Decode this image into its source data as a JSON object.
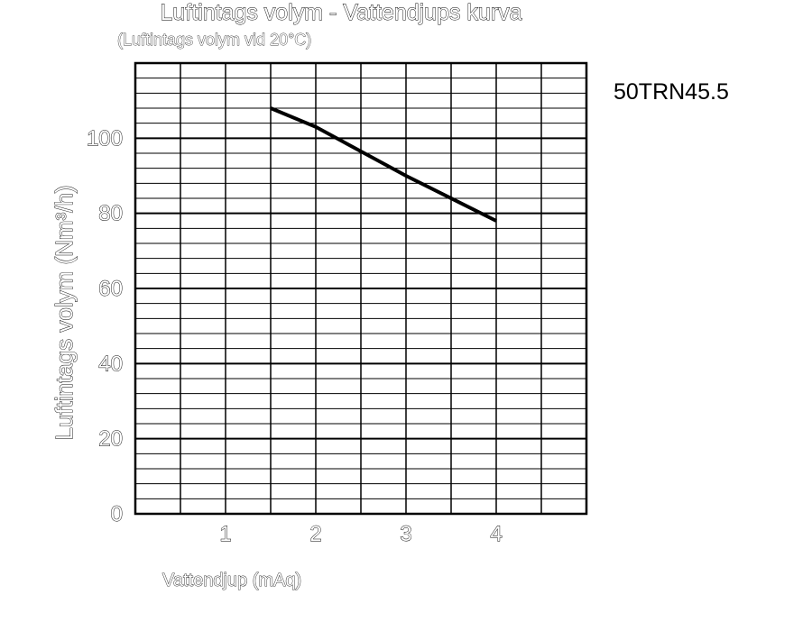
{
  "chart_data": {
    "type": "line",
    "title": "Luftintags volym - Vattendjups kurva",
    "subtitle": "(Luftintags volym vid 20°C)",
    "xlabel": "Vattendjup (mAq)",
    "ylabel": "Luftintags volym (Nm³/h)",
    "model_label": "50TRN45.5",
    "xlim": [
      0,
      5
    ],
    "ylim": [
      0,
      120
    ],
    "x_ticks": [
      "1",
      "2",
      "3",
      "4"
    ],
    "y_ticks": [
      "0",
      "20",
      "40",
      "60",
      "80",
      "100"
    ],
    "x_tick_values": [
      1,
      2,
      3,
      4
    ],
    "y_tick_values": [
      0,
      20,
      40,
      60,
      80,
      100
    ],
    "grid": true,
    "x_grid_step": 0.5,
    "y_grid_step": 4,
    "series": [
      {
        "x": [
          1.5,
          2.0,
          3.0,
          4.0
        ],
        "y": [
          108,
          103,
          90,
          78
        ],
        "color": "#000000"
      }
    ]
  }
}
